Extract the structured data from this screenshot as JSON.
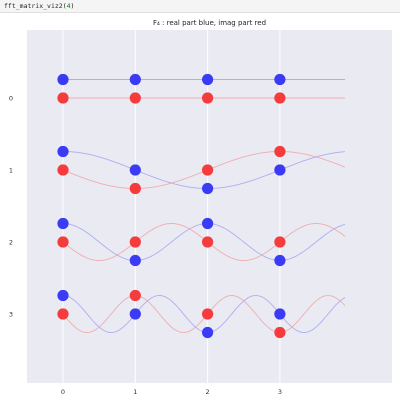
{
  "notebook": {
    "code_fn": "fft_matrix_viz2(",
    "code_arg": "4",
    "code_close": ")"
  },
  "chart_data": {
    "type": "scatter",
    "title": "F₄ : real part blue, imag part red",
    "n": 4,
    "x_ticks": [
      "0",
      "1",
      "2",
      "3"
    ],
    "y_ticks": [
      "0",
      "1",
      "2",
      "3"
    ],
    "xlim": [
      -0.5,
      4.0
    ],
    "colors": {
      "real": "#3b3bf5",
      "imag": "#f53b3b",
      "real_curve": "#9a9af0",
      "imag_curve": "#f09a9a",
      "plot_bg": "#eaeaf2",
      "grid": "#ffffff"
    },
    "rows": [
      {
        "row": 0,
        "real": [
          1,
          1,
          1,
          1
        ],
        "imag": [
          0,
          0,
          0,
          0
        ]
      },
      {
        "row": 1,
        "real": [
          1,
          0,
          -1,
          0
        ],
        "imag": [
          0,
          -1,
          0,
          1
        ]
      },
      {
        "row": 2,
        "real": [
          1,
          -1,
          1,
          -1
        ],
        "imag": [
          0,
          0,
          0,
          0
        ]
      },
      {
        "row": 3,
        "real": [
          1,
          0,
          -1,
          0
        ],
        "imag": [
          0,
          1,
          0,
          -1
        ]
      }
    ]
  }
}
